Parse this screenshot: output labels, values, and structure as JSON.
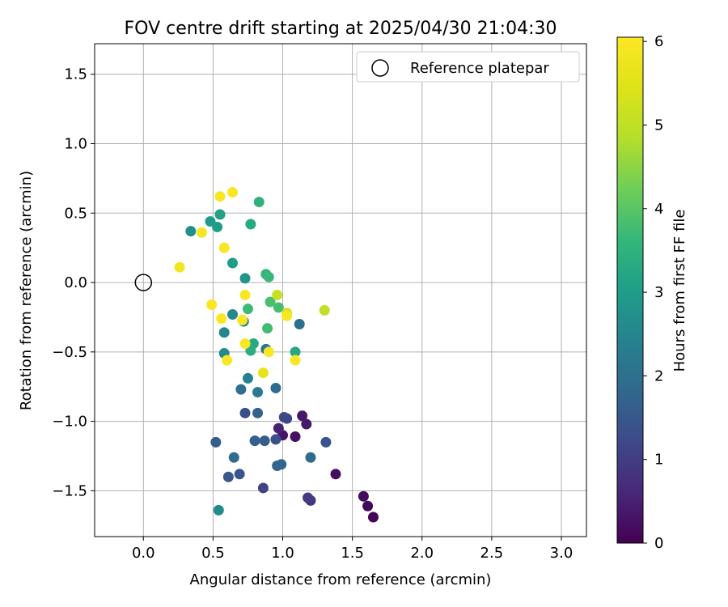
{
  "chart_data": {
    "type": "scatter",
    "title": "FOV centre drift starting at 2025/04/30 21:04:30",
    "xlabel": "Angular distance from reference (arcmin)",
    "ylabel": "Rotation from reference (arcmin)",
    "xlim": [
      -0.35,
      3.18
    ],
    "ylim": [
      -1.83,
      1.72
    ],
    "xticks": [
      0.0,
      0.5,
      1.0,
      1.5,
      2.0,
      2.5,
      3.0
    ],
    "xtick_labels": [
      "0.0",
      "0.5",
      "1.0",
      "1.5",
      "2.0",
      "2.5",
      "3.0"
    ],
    "yticks": [
      -1.5,
      -1.0,
      -0.5,
      0.0,
      0.5,
      1.0,
      1.5
    ],
    "ytick_labels": [
      "−1.5",
      "−1.0",
      "−0.5",
      "0.0",
      "0.5",
      "1.0",
      "1.5"
    ],
    "grid": true,
    "legend": {
      "position": "top-right",
      "entries": [
        {
          "label": "Reference platepar",
          "marker": "hollow-circle"
        }
      ]
    },
    "reference_point": {
      "x": 0.0,
      "y": 0.0
    },
    "colorbar": {
      "label": "Hours from first FF file",
      "range": [
        0,
        6.05
      ],
      "ticks": [
        0,
        1,
        2,
        3,
        4,
        5,
        6
      ],
      "colormap": "viridis"
    },
    "points": [
      {
        "x": 1.65,
        "y": -1.69,
        "hours": 0.05
      },
      {
        "x": 1.61,
        "y": -1.61,
        "hours": 0.1
      },
      {
        "x": 1.58,
        "y": -1.54,
        "hours": 0.15
      },
      {
        "x": 1.38,
        "y": -1.38,
        "hours": 0.2
      },
      {
        "x": 1.09,
        "y": -1.11,
        "hours": 0.25
      },
      {
        "x": 1.0,
        "y": -1.1,
        "hours": 0.3
      },
      {
        "x": 1.14,
        "y": -0.96,
        "hours": 0.35
      },
      {
        "x": 1.17,
        "y": -1.02,
        "hours": 0.4
      },
      {
        "x": 0.97,
        "y": -1.05,
        "hours": 0.5
      },
      {
        "x": 1.2,
        "y": -1.57,
        "hours": 0.9
      },
      {
        "x": 1.18,
        "y": -1.55,
        "hours": 0.95
      },
      {
        "x": 0.86,
        "y": -1.48,
        "hours": 1.1
      },
      {
        "x": 1.03,
        "y": -0.98,
        "hours": 1.15
      },
      {
        "x": 1.01,
        "y": -0.97,
        "hours": 1.2
      },
      {
        "x": 0.95,
        "y": -1.13,
        "hours": 1.3
      },
      {
        "x": 0.73,
        "y": -0.94,
        "hours": 1.35
      },
      {
        "x": 1.31,
        "y": -1.15,
        "hours": 1.4
      },
      {
        "x": 0.69,
        "y": -1.38,
        "hours": 1.45
      },
      {
        "x": 0.61,
        "y": -1.4,
        "hours": 1.5
      },
      {
        "x": 0.52,
        "y": -1.15,
        "hours": 1.6
      },
      {
        "x": 0.87,
        "y": -1.14,
        "hours": 1.6
      },
      {
        "x": 0.8,
        "y": -1.14,
        "hours": 1.65
      },
      {
        "x": 0.82,
        "y": -0.94,
        "hours": 1.7
      },
      {
        "x": 0.96,
        "y": -1.32,
        "hours": 1.75
      },
      {
        "x": 0.99,
        "y": -1.31,
        "hours": 1.8
      },
      {
        "x": 1.2,
        "y": -1.26,
        "hours": 1.85
      },
      {
        "x": 0.65,
        "y": -1.26,
        "hours": 1.9
      },
      {
        "x": 0.95,
        "y": -0.76,
        "hours": 1.9
      },
      {
        "x": 0.7,
        "y": -0.77,
        "hours": 2.0
      },
      {
        "x": 1.12,
        "y": -0.3,
        "hours": 2.0
      },
      {
        "x": 0.88,
        "y": -0.48,
        "hours": 2.1
      },
      {
        "x": 0.82,
        "y": -0.79,
        "hours": 2.2
      },
      {
        "x": 0.75,
        "y": -0.69,
        "hours": 2.4
      },
      {
        "x": 0.58,
        "y": -0.36,
        "hours": 2.5
      },
      {
        "x": 0.64,
        "y": -0.23,
        "hours": 2.55
      },
      {
        "x": 0.58,
        "y": -0.51,
        "hours": 2.6
      },
      {
        "x": 0.54,
        "y": -1.64,
        "hours": 2.6
      },
      {
        "x": 0.72,
        "y": -0.28,
        "hours": 2.65
      },
      {
        "x": 0.34,
        "y": 0.37,
        "hours": 2.7
      },
      {
        "x": 0.73,
        "y": 0.03,
        "hours": 2.8
      },
      {
        "x": 0.48,
        "y": 0.44,
        "hours": 2.95
      },
      {
        "x": 0.53,
        "y": 0.4,
        "hours": 3.0
      },
      {
        "x": 0.64,
        "y": 0.14,
        "hours": 3.0
      },
      {
        "x": 0.55,
        "y": 0.49,
        "hours": 3.1
      },
      {
        "x": 0.77,
        "y": 0.42,
        "hours": 3.3
      },
      {
        "x": 1.09,
        "y": -0.5,
        "hours": 3.25
      },
      {
        "x": 0.79,
        "y": -0.44,
        "hours": 3.3
      },
      {
        "x": 0.77,
        "y": -0.49,
        "hours": 3.4
      },
      {
        "x": 0.83,
        "y": 0.58,
        "hours": 3.5
      },
      {
        "x": 0.88,
        "y": 0.06,
        "hours": 3.6
      },
      {
        "x": 0.9,
        "y": 0.04,
        "hours": 3.65
      },
      {
        "x": 0.75,
        "y": -0.19,
        "hours": 3.7
      },
      {
        "x": 0.89,
        "y": -0.33,
        "hours": 3.75
      },
      {
        "x": 0.97,
        "y": -0.18,
        "hours": 3.8
      },
      {
        "x": 0.91,
        "y": -0.14,
        "hours": 3.85
      },
      {
        "x": 1.3,
        "y": -0.2,
        "hours": 5.0
      },
      {
        "x": 0.96,
        "y": -0.09,
        "hours": 5.1
      },
      {
        "x": 1.03,
        "y": -0.22,
        "hours": 5.3
      },
      {
        "x": 0.86,
        "y": -0.65,
        "hours": 5.6
      },
      {
        "x": 0.26,
        "y": 0.11,
        "hours": 5.85
      },
      {
        "x": 0.42,
        "y": 0.36,
        "hours": 5.9
      },
      {
        "x": 0.58,
        "y": 0.25,
        "hours": 5.95
      },
      {
        "x": 0.55,
        "y": 0.62,
        "hours": 5.95
      },
      {
        "x": 0.64,
        "y": 0.65,
        "hours": 6.0
      },
      {
        "x": 0.49,
        "y": -0.16,
        "hours": 6.0
      },
      {
        "x": 0.56,
        "y": -0.26,
        "hours": 6.0
      },
      {
        "x": 0.71,
        "y": -0.27,
        "hours": 6.0
      },
      {
        "x": 0.73,
        "y": -0.09,
        "hours": 6.0
      },
      {
        "x": 0.6,
        "y": -0.56,
        "hours": 6.0
      },
      {
        "x": 0.73,
        "y": -0.44,
        "hours": 6.0
      },
      {
        "x": 0.9,
        "y": -0.5,
        "hours": 6.0
      },
      {
        "x": 1.03,
        "y": -0.24,
        "hours": 6.0
      },
      {
        "x": 1.09,
        "y": -0.56,
        "hours": 6.0
      }
    ]
  }
}
